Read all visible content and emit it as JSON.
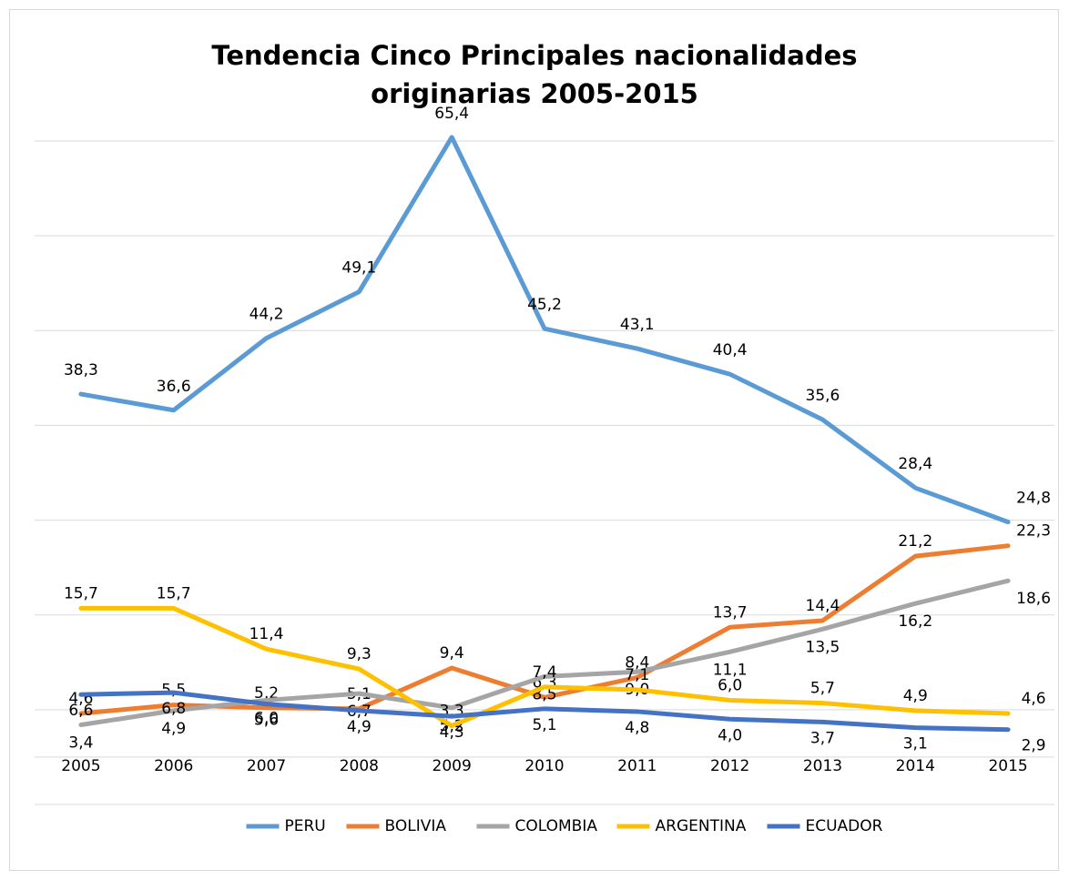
{
  "chart_data": {
    "type": "line",
    "title": "Tendencia Cinco Principales nacionalidades originarias 2005-2015",
    "categories": [
      "2005",
      "2006",
      "2007",
      "2008",
      "2009",
      "2010",
      "2011",
      "2012",
      "2013",
      "2014",
      "2015"
    ],
    "series": [
      {
        "name": "PERU",
        "color": "#5b9bd5",
        "values": [
          38.3,
          36.6,
          44.2,
          49.1,
          65.4,
          45.2,
          43.1,
          40.4,
          35.6,
          28.4,
          24.8
        ],
        "value_labels": [
          "38,3",
          "36,6",
          "44,2",
          "49,1",
          "65,4",
          "45,2",
          "43,1",
          "40,4",
          "35,6",
          "28,4",
          "24,8"
        ]
      },
      {
        "name": "BOLIVIA",
        "color": "#ed7d31",
        "values": [
          4.6,
          5.5,
          5.2,
          5.1,
          9.4,
          6.3,
          8.4,
          13.7,
          14.4,
          21.2,
          22.3
        ],
        "value_labels": [
          "4,6",
          "5,5",
          "5,2",
          "5,1",
          "9,4",
          "6,3",
          "8,4",
          "13,7",
          "14,4",
          "21,2",
          "22,3"
        ]
      },
      {
        "name": "COLOMBIA",
        "color": "#a5a5a5",
        "values": [
          3.4,
          4.9,
          6.0,
          6.7,
          5.2,
          8.5,
          9.0,
          11.1,
          13.5,
          16.2,
          18.6
        ],
        "value_labels": [
          "3,4",
          "4,9",
          "6,0",
          "6,7",
          "5,2",
          "8,5",
          "9,0",
          "11,1",
          "13,5",
          "16,2",
          "18,6"
        ]
      },
      {
        "name": "ARGENTINA",
        "color": "#ffc000",
        "values": [
          15.7,
          15.7,
          11.4,
          9.3,
          3.3,
          7.4,
          7.1,
          6.0,
          5.7,
          4.9,
          4.6
        ],
        "value_labels": [
          "15,7",
          "15,7",
          "11,4",
          "9,3",
          "3,3",
          "7,4",
          "7,1",
          "6,0",
          "5,7",
          "4,9",
          "4,6"
        ]
      },
      {
        "name": "ECUADOR",
        "color": "#4472c4",
        "values": [
          6.6,
          6.8,
          5.6,
          4.9,
          4.3,
          5.1,
          4.8,
          4.0,
          3.7,
          3.1,
          2.9
        ],
        "value_labels": [
          "6,6",
          "6,8",
          "5,6",
          "4,9",
          "4,3",
          "5,1",
          "4,8",
          "4,0",
          "3,7",
          "3,1",
          "2,9"
        ]
      }
    ],
    "ylim": [
      -5,
      65
    ],
    "yticks": [
      -5,
      5,
      15,
      25,
      35,
      45,
      55,
      65
    ],
    "grid": true,
    "legend": "bottom"
  }
}
